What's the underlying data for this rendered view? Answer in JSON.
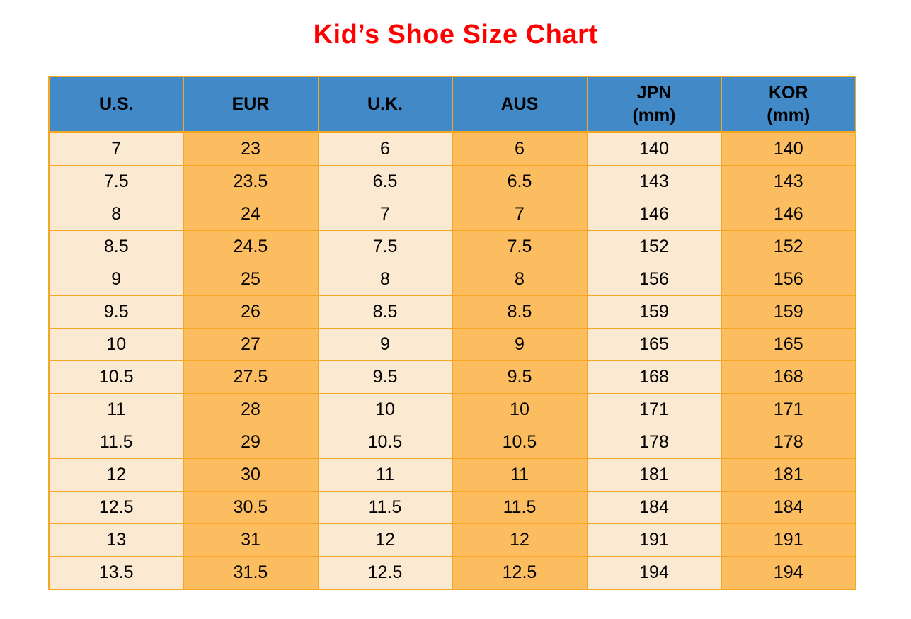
{
  "title": {
    "text": "Kid’s Shoe Size Chart",
    "color": "#FF0000"
  },
  "table": {
    "columns": [
      {
        "id": "us",
        "label_lines": [
          "U.S."
        ],
        "shade": "light"
      },
      {
        "id": "eur",
        "label_lines": [
          "EUR"
        ],
        "shade": "orange"
      },
      {
        "id": "uk",
        "label_lines": [
          "U.K."
        ],
        "shade": "light"
      },
      {
        "id": "aus",
        "label_lines": [
          "AUS"
        ],
        "shade": "orange"
      },
      {
        "id": "jpn",
        "label_lines": [
          "JPN",
          "(mm)"
        ],
        "shade": "light"
      },
      {
        "id": "kor",
        "label_lines": [
          "KOR",
          "(mm)"
        ],
        "shade": "orange"
      }
    ],
    "rows": [
      [
        "7",
        "23",
        "6",
        "6",
        "140",
        "140"
      ],
      [
        "7.5",
        "23.5",
        "6.5",
        "6.5",
        "143",
        "143"
      ],
      [
        "8",
        "24",
        "7",
        "7",
        "146",
        "146"
      ],
      [
        "8.5",
        "24.5",
        "7.5",
        "7.5",
        "152",
        "152"
      ],
      [
        "9",
        "25",
        "8",
        "8",
        "156",
        "156"
      ],
      [
        "9.5",
        "26",
        "8.5",
        "8.5",
        "159",
        "159"
      ],
      [
        "10",
        "27",
        "9",
        "9",
        "165",
        "165"
      ],
      [
        "10.5",
        "27.5",
        "9.5",
        "9.5",
        "168",
        "168"
      ],
      [
        "11",
        "28",
        "10",
        "10",
        "171",
        "171"
      ],
      [
        "11.5",
        "29",
        "10.5",
        "10.5",
        "178",
        "178"
      ],
      [
        "12",
        "30",
        "11",
        "11",
        "181",
        "181"
      ],
      [
        "12.5",
        "30.5",
        "11.5",
        "11.5",
        "184",
        "184"
      ],
      [
        "13",
        "31",
        "12",
        "12",
        "191",
        "191"
      ],
      [
        "13.5",
        "31.5",
        "12.5",
        "12.5",
        "194",
        "194"
      ]
    ]
  },
  "colors": {
    "title_red": "#FF0000",
    "header_blue": "#4289C7",
    "cell_light": "#FCE9D1",
    "cell_orange": "#FCBD61",
    "border_orange": "#F5A623",
    "text": "#000000",
    "background": "#FFFFFF"
  },
  "chart_data": {
    "type": "table",
    "title": "Kid’s Shoe Size Chart",
    "columns": [
      "U.S.",
      "EUR",
      "U.K.",
      "AUS",
      "JPN (mm)",
      "KOR (mm)"
    ],
    "rows": [
      [
        "7",
        "23",
        "6",
        "6",
        "140",
        "140"
      ],
      [
        "7.5",
        "23.5",
        "6.5",
        "6.5",
        "143",
        "143"
      ],
      [
        "8",
        "24",
        "7",
        "7",
        "146",
        "146"
      ],
      [
        "8.5",
        "24.5",
        "7.5",
        "7.5",
        "152",
        "152"
      ],
      [
        "9",
        "25",
        "8",
        "8",
        "156",
        "156"
      ],
      [
        "9.5",
        "26",
        "8.5",
        "8.5",
        "159",
        "159"
      ],
      [
        "10",
        "27",
        "9",
        "9",
        "165",
        "165"
      ],
      [
        "10.5",
        "27.5",
        "9.5",
        "9.5",
        "168",
        "168"
      ],
      [
        "11",
        "28",
        "10",
        "10",
        "171",
        "171"
      ],
      [
        "11.5",
        "29",
        "10.5",
        "10.5",
        "178",
        "178"
      ],
      [
        "12",
        "30",
        "11",
        "11",
        "181",
        "181"
      ],
      [
        "12.5",
        "30.5",
        "11.5",
        "11.5",
        "184",
        "184"
      ],
      [
        "13",
        "31",
        "12",
        "12",
        "191",
        "191"
      ],
      [
        "13.5",
        "31.5",
        "12.5",
        "12.5",
        "194",
        "194"
      ]
    ]
  }
}
